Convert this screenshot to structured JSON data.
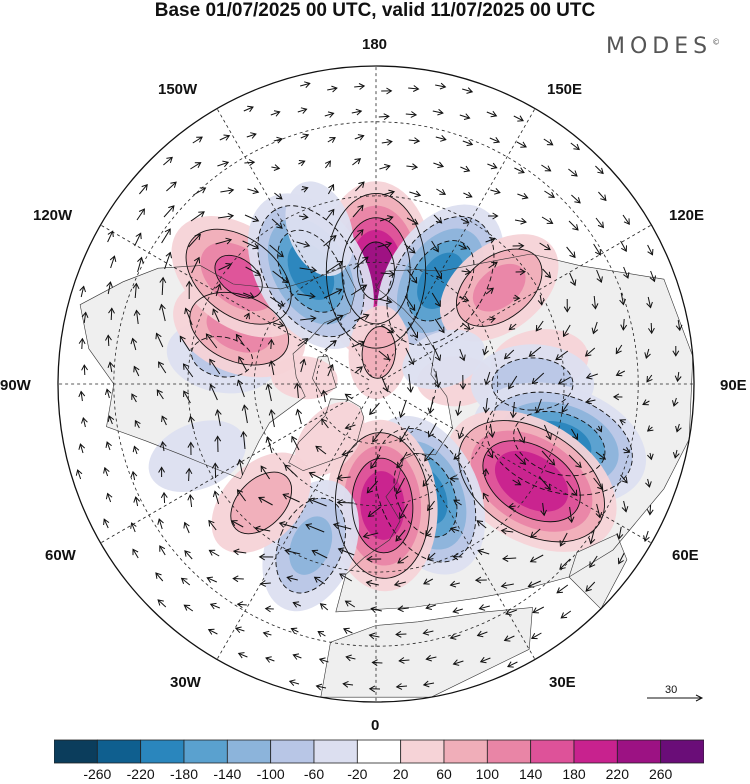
{
  "title": "Base 01/07/2025 00 UTC, valid 11/07/2025 00 UTC",
  "brand": "MODES",
  "brand_mark": "©",
  "lon_labels": {
    "l180": "180",
    "l150w": "150W",
    "l150e": "150E",
    "l120w": "120W",
    "l120e": "120E",
    "l90w": "90W",
    "l90e": "90E",
    "l60w": "60W",
    "l60e": "60E",
    "l30w": "30W",
    "l30e": "30E",
    "l0": "0"
  },
  "reference_vector_label": "30",
  "colorbar": {
    "colors": [
      "#0b3d5c",
      "#0f5f8f",
      "#2a86bd",
      "#5aa1cf",
      "#8cb4db",
      "#b8c6e6",
      "#dcdff0",
      "#ffffff",
      "#f6d3d7",
      "#f0aeb9",
      "#e985a6",
      "#de5299",
      "#c8228e",
      "#9c1283",
      "#6a0d78"
    ],
    "labels": [
      "-260",
      "-220",
      "-180",
      "-140",
      "-100",
      "-60",
      "-20",
      "20",
      "60",
      "100",
      "140",
      "180",
      "220",
      "260"
    ]
  },
  "map_style": {
    "land_fill": "#efefef",
    "coast_color": "#333333",
    "grid_color": "#222222"
  },
  "anomaly_centers": [
    {
      "lon": 180,
      "lat": 62,
      "value": 230
    },
    {
      "lon": 148,
      "lat": 60,
      "value": -200
    },
    {
      "lon": 128,
      "lat": 52,
      "value": 120
    },
    {
      "lon": 98,
      "lat": 50,
      "value": 60
    },
    {
      "lon": 92,
      "lat": 70,
      "value": 50
    },
    {
      "lon": 90,
      "lat": 52,
      "value": -100
    },
    {
      "lon": 72,
      "lat": 44,
      "value": -200
    },
    {
      "lon": 58,
      "lat": 46,
      "value": 220
    },
    {
      "lon": 24,
      "lat": 60,
      "value": -200
    },
    {
      "lon": 3,
      "lat": 60,
      "value": 210
    },
    {
      "lon": -22,
      "lat": 48,
      "value": -120
    },
    {
      "lon": -44,
      "lat": 50,
      "value": 90
    },
    {
      "lon": -68,
      "lat": 44,
      "value": -60
    },
    {
      "lon": -100,
      "lat": 52,
      "value": -80
    },
    {
      "lon": -112,
      "lat": 54,
      "value": 130
    },
    {
      "lon": -128,
      "lat": 48,
      "value": 150
    },
    {
      "lon": -150,
      "lat": 58,
      "value": -200
    },
    {
      "lon": -160,
      "lat": 50,
      "value": -60
    },
    {
      "lon": 175,
      "lat": 82,
      "value": 80
    },
    {
      "lon": 110,
      "lat": 72,
      "value": -60
    },
    {
      "lon": -40,
      "lat": 72,
      "value": 60
    },
    {
      "lon": -95,
      "lat": 72,
      "value": 40
    }
  ]
}
